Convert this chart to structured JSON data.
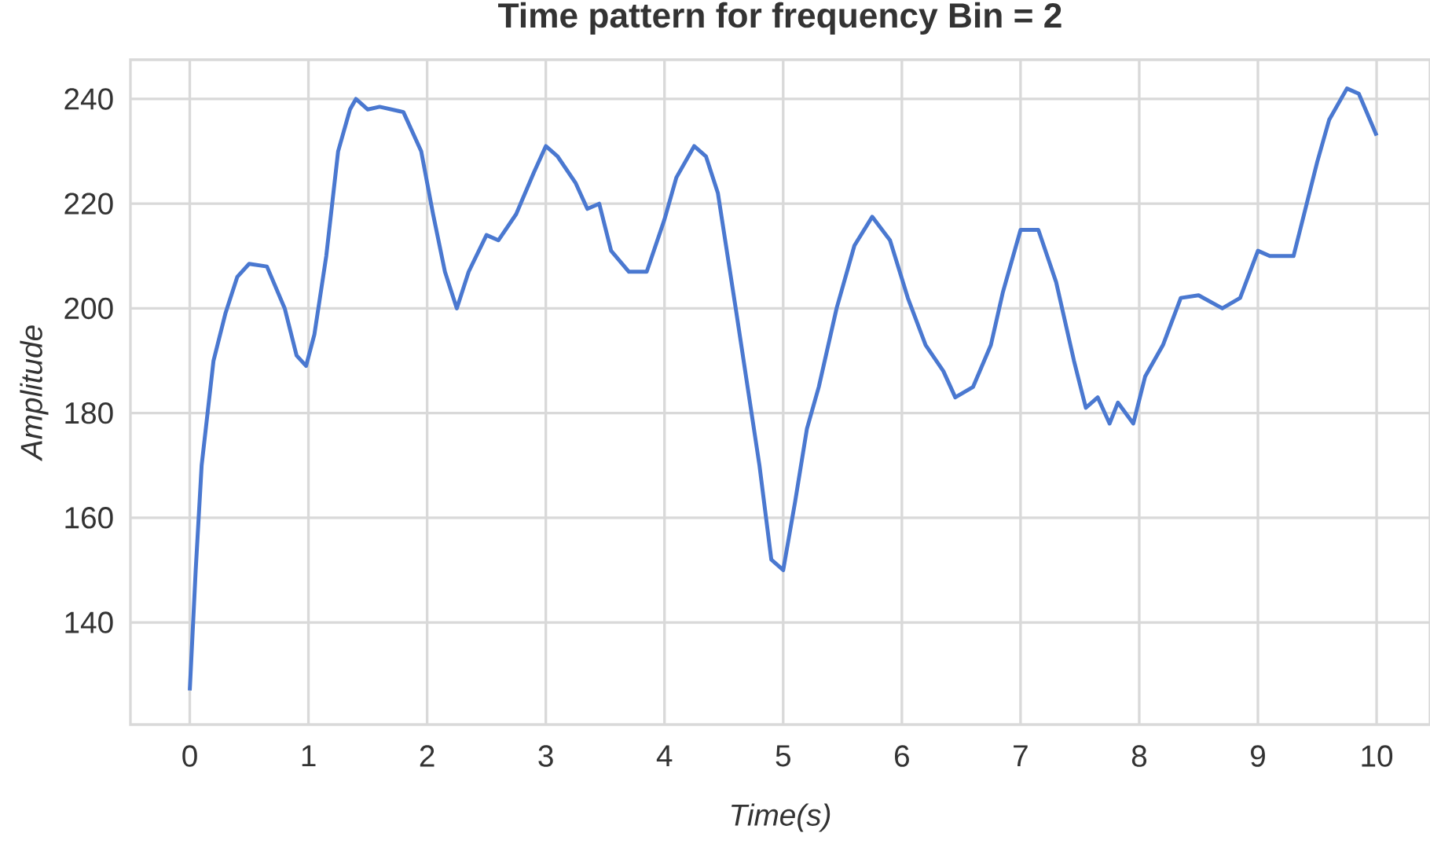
{
  "chart_data": {
    "type": "line",
    "title": "Time pattern for frequency Bin = 2",
    "xlabel": "Time(s)",
    "ylabel": "Amplitude",
    "xlim": [
      -0.5,
      10.45
    ],
    "ylim": [
      120.5,
      247.5
    ],
    "xticks": [
      0,
      1,
      2,
      3,
      4,
      5,
      6,
      7,
      8,
      9,
      10
    ],
    "yticks": [
      140,
      160,
      180,
      200,
      220,
      240
    ],
    "grid": true,
    "line_style": "solid",
    "series": [
      {
        "color": "#4a78d0",
        "x": [
          0,
          0.05,
          0.1,
          0.2,
          0.3,
          0.4,
          0.5,
          0.65,
          0.8,
          0.9,
          0.98,
          1.05,
          1.15,
          1.25,
          1.35,
          1.4,
          1.5,
          1.6,
          1.8,
          1.95,
          2.05,
          2.15,
          2.25,
          2.35,
          2.5,
          2.6,
          2.75,
          2.9,
          3.0,
          3.1,
          3.25,
          3.35,
          3.45,
          3.55,
          3.7,
          3.85,
          4.0,
          4.1,
          4.25,
          4.35,
          4.45,
          4.6,
          4.8,
          4.9,
          5.0,
          5.1,
          5.2,
          5.3,
          5.45,
          5.6,
          5.75,
          5.9,
          6.05,
          6.2,
          6.35,
          6.45,
          6.6,
          6.75,
          6.85,
          7.0,
          7.15,
          7.3,
          7.45,
          7.55,
          7.65,
          7.75,
          7.82,
          7.95,
          8.05,
          8.2,
          8.35,
          8.5,
          8.7,
          8.85,
          9.0,
          9.1,
          9.3,
          9.5,
          9.6,
          9.75,
          9.85,
          10.0
        ],
        "values": [
          127,
          150,
          170,
          190,
          199,
          206,
          208.5,
          208,
          200,
          191,
          189,
          195,
          210,
          230,
          238,
          240,
          238,
          238.5,
          237.5,
          230,
          218,
          207,
          200,
          207,
          214,
          213,
          218,
          226,
          231,
          229,
          224,
          219,
          220,
          211,
          207,
          207,
          217,
          225,
          231,
          229,
          222,
          200,
          170,
          152,
          150,
          163,
          177,
          185,
          200,
          212,
          217.5,
          213,
          202,
          193,
          188,
          183,
          185,
          193,
          203,
          215,
          215,
          205,
          190,
          181,
          183,
          178,
          182,
          178,
          187,
          193,
          202,
          202.5,
          200,
          202,
          211,
          210,
          210,
          228,
          236,
          242,
          241,
          233
        ]
      }
    ]
  }
}
